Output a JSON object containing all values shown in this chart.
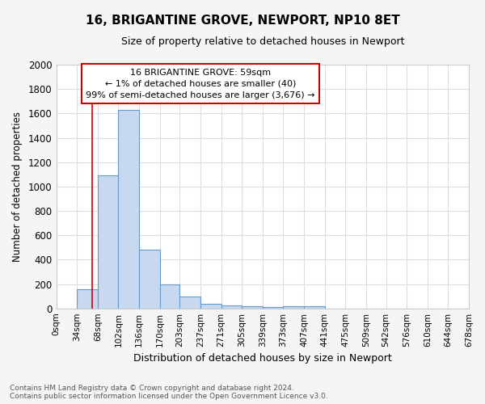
{
  "title": "16, BRIGANTINE GROVE, NEWPORT, NP10 8ET",
  "subtitle": "Size of property relative to detached houses in Newport",
  "xlabel": "Distribution of detached houses by size in Newport",
  "ylabel": "Number of detached properties",
  "bar_color": "#c8d8ee",
  "bar_edge_color": "#6699cc",
  "plot_bg_color": "#ffffff",
  "fig_bg_color": "#f5f5f5",
  "grid_color": "#dddddd",
  "property_sqm": 59,
  "property_line_color": "#cc0000",
  "annotation_line1": "16 BRIGANTINE GROVE: 59sqm",
  "annotation_line2": "← 1% of detached houses are smaller (40)",
  "annotation_line3": "99% of semi-detached houses are larger (3,676) →",
  "annotation_box_color": "#ffffff",
  "annotation_box_edge_color": "#cc0000",
  "bin_edges": [
    0,
    34,
    68,
    102,
    136,
    170,
    203,
    237,
    271,
    305,
    339,
    373,
    407,
    441,
    475,
    509,
    542,
    576,
    610,
    644,
    678
  ],
  "bin_counts": [
    0,
    160,
    1090,
    1630,
    480,
    200,
    100,
    40,
    25,
    15,
    10,
    15,
    20,
    0,
    0,
    0,
    0,
    0,
    0,
    0
  ],
  "ylim": [
    0,
    2000
  ],
  "yticks": [
    0,
    200,
    400,
    600,
    800,
    1000,
    1200,
    1400,
    1600,
    1800,
    2000
  ],
  "footer_text": "Contains HM Land Registry data © Crown copyright and database right 2024.\nContains public sector information licensed under the Open Government Licence v3.0.",
  "figsize": [
    6.0,
    5.0
  ],
  "dpi": 100
}
